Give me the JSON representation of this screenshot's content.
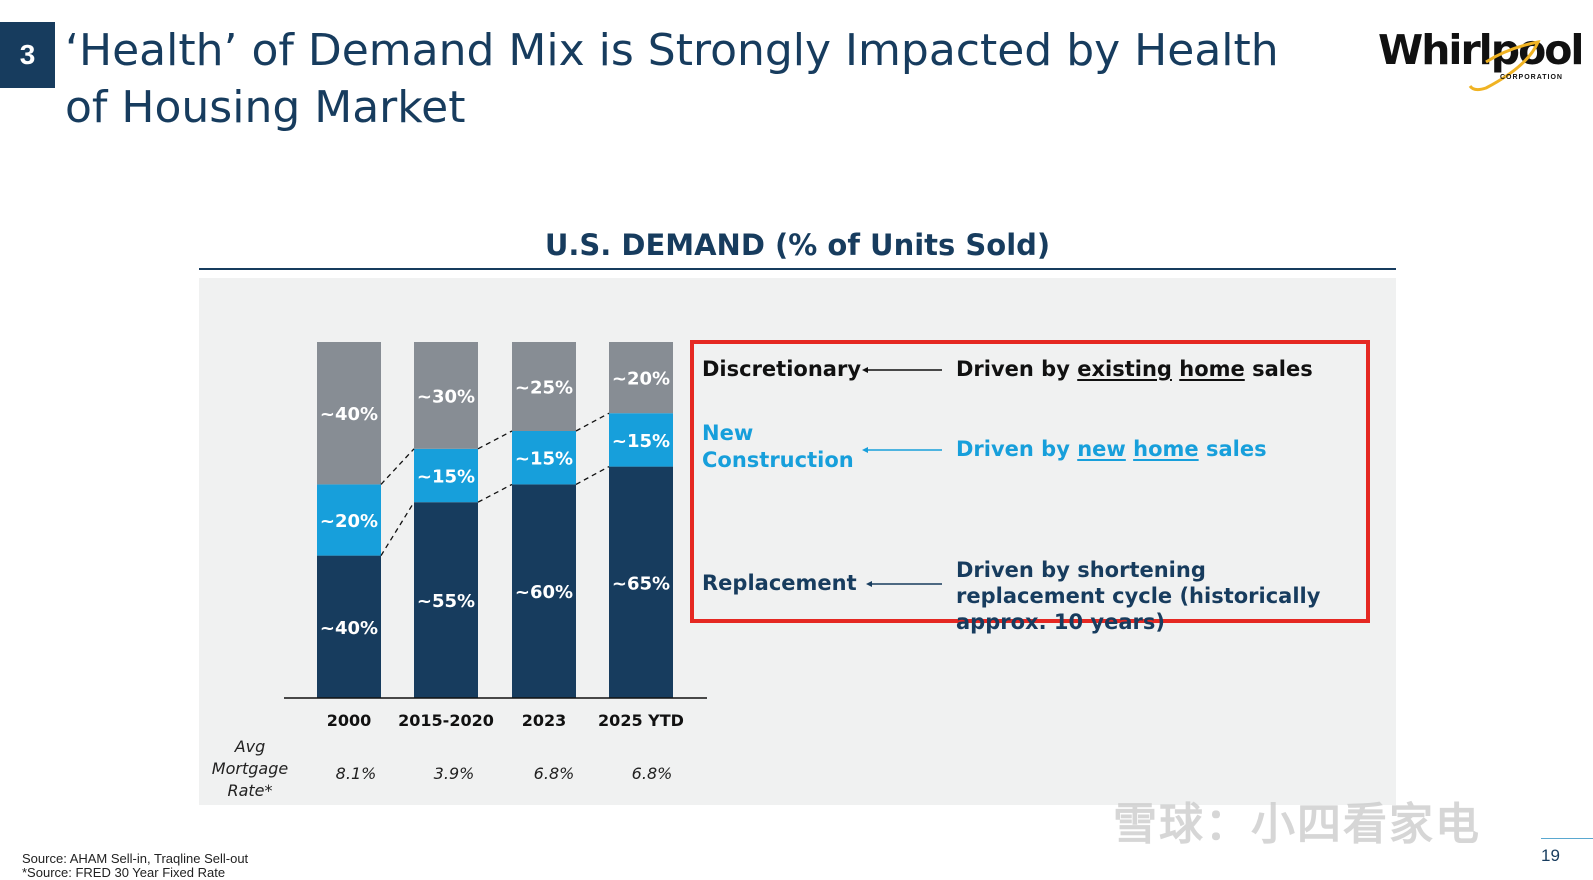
{
  "slide": {
    "section_number": "3",
    "title": "‘Health’ of Demand Mix is Strongly Impacted by Health of Housing Market",
    "page_number": "19"
  },
  "logo": {
    "text": "Whirlpool",
    "subtext": "CORPORATION"
  },
  "colors": {
    "navy": "#173c5e",
    "blue": "#179fdb",
    "gray": "#878d94",
    "highlight_border": "#e52822",
    "panel": "#f0f1f1"
  },
  "chart_data": {
    "type": "bar",
    "stacked": true,
    "title": "U.S. DEMAND (% of Units Sold)",
    "categories": [
      "2000",
      "2015-2020",
      "2023",
      "2025 YTD"
    ],
    "series": [
      {
        "name": "Replacement",
        "color": "#173c5e",
        "values": [
          40,
          55,
          60,
          65
        ],
        "labels": [
          "~40%",
          "~55%",
          "~60%",
          "~65%"
        ]
      },
      {
        "name": "New Construction",
        "color": "#179fdb",
        "values": [
          20,
          15,
          15,
          15
        ],
        "labels": [
          "~20%",
          "~15%",
          "~15%",
          "~15%"
        ]
      },
      {
        "name": "Discretionary",
        "color": "#878d94",
        "values": [
          40,
          30,
          25,
          20
        ],
        "labels": [
          "~40%",
          "~30%",
          "~25%",
          "~20%"
        ]
      }
    ],
    "ylim": [
      0,
      100
    ]
  },
  "mortgage": {
    "label": "Avg Mortgage Rate*",
    "values": [
      "8.1%",
      "3.9%",
      "6.8%",
      "6.8%"
    ]
  },
  "legend": {
    "items": [
      {
        "name": "Discretionary",
        "desc_prefix": "Driven by ",
        "u1": "existing",
        "u2": "home",
        "desc_suffix": " sales"
      },
      {
        "name": "New Construction",
        "desc_prefix": "Driven by ",
        "u1": "new",
        "u2": "home",
        "desc_suffix": " sales"
      },
      {
        "name": "Replacement",
        "desc": "Driven by shortening replacement cycle (historically approx. 10 years)"
      }
    ]
  },
  "footnotes": {
    "source1": "Source: AHAM Sell-in, Traqline Sell-out",
    "source2": "*Source: FRED 30 Year Fixed Rate"
  },
  "watermark": "雪球：小四看家电"
}
